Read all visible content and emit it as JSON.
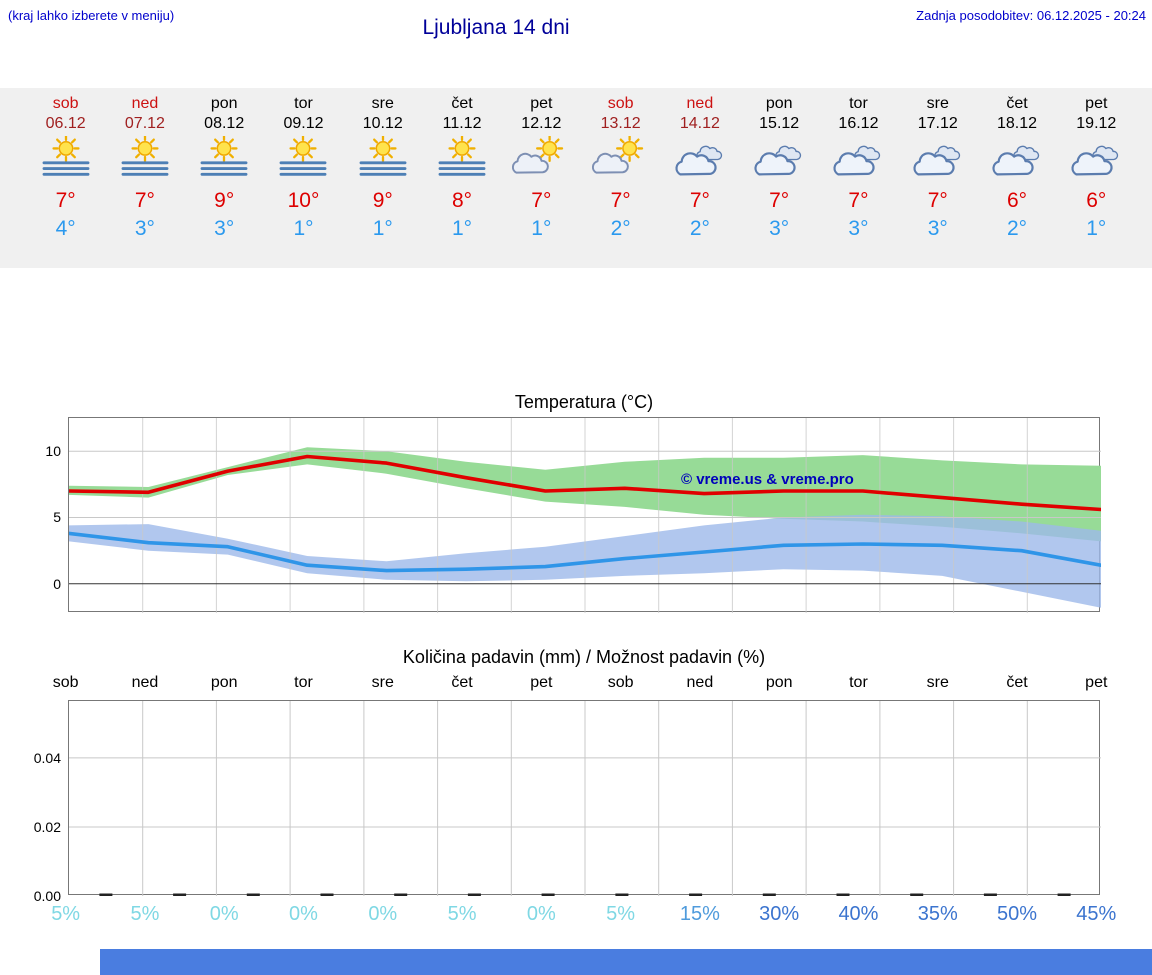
{
  "header": {
    "hint": "(kraj lahko izberete v meniju)",
    "title": "Ljubljana 14 dni",
    "last_update": "Zadnja posodobitev: 06.12.2025 - 20:24"
  },
  "colors": {
    "accent_blue": "#0000cc",
    "title_navy": "#000099",
    "weekend_red": "#cc1111",
    "weekend_date_red": "#a02020",
    "high_red": "#dd0000",
    "low_blue": "#2b99ee",
    "strip_bg": "#f0f0f0",
    "footer_bar": "#4a7de0"
  },
  "forecast": {
    "days": [
      {
        "day": "sob",
        "date": "06.12",
        "weekend": true,
        "icon": "sun-fog",
        "high": "7°",
        "low": "4°"
      },
      {
        "day": "ned",
        "date": "07.12",
        "weekend": true,
        "icon": "sun-fog",
        "high": "7°",
        "low": "3°"
      },
      {
        "day": "pon",
        "date": "08.12",
        "weekend": false,
        "icon": "sun-fog",
        "high": "9°",
        "low": "3°"
      },
      {
        "day": "tor",
        "date": "09.12",
        "weekend": false,
        "icon": "sun-fog",
        "high": "10°",
        "low": "1°"
      },
      {
        "day": "sre",
        "date": "10.12",
        "weekend": false,
        "icon": "sun-fog",
        "high": "9°",
        "low": "1°"
      },
      {
        "day": "čet",
        "date": "11.12",
        "weekend": false,
        "icon": "sun-fog",
        "high": "8°",
        "low": "1°"
      },
      {
        "day": "pet",
        "date": "12.12",
        "weekend": false,
        "icon": "sun-cloud",
        "high": "7°",
        "low": "1°"
      },
      {
        "day": "sob",
        "date": "13.12",
        "weekend": true,
        "icon": "sun-cloud",
        "high": "7°",
        "low": "2°"
      },
      {
        "day": "ned",
        "date": "14.12",
        "weekend": true,
        "icon": "clouds",
        "high": "7°",
        "low": "2°"
      },
      {
        "day": "pon",
        "date": "15.12",
        "weekend": false,
        "icon": "clouds",
        "high": "7°",
        "low": "3°"
      },
      {
        "day": "tor",
        "date": "16.12",
        "weekend": false,
        "icon": "clouds",
        "high": "7°",
        "low": "3°"
      },
      {
        "day": "sre",
        "date": "17.12",
        "weekend": false,
        "icon": "clouds",
        "high": "7°",
        "low": "3°"
      },
      {
        "day": "čet",
        "date": "18.12",
        "weekend": false,
        "icon": "clouds",
        "high": "6°",
        "low": "2°"
      },
      {
        "day": "pet",
        "date": "19.12",
        "weekend": false,
        "icon": "clouds",
        "high": "6°",
        "low": "1°"
      }
    ]
  },
  "chart_data": [
    {
      "type": "line",
      "title": "Temperatura (°C)",
      "categories": [
        "sob",
        "ned",
        "pon",
        "tor",
        "sre",
        "čet",
        "pet",
        "sob",
        "ned",
        "pon",
        "tor",
        "sre",
        "čet",
        "pet"
      ],
      "ylim": [
        -2.2,
        12.5
      ],
      "yticks": [
        {
          "v": 0,
          "label": "0"
        },
        {
          "v": 5,
          "label": "5"
        },
        {
          "v": 10,
          "label": "10"
        }
      ],
      "grid": true,
      "legend": "none",
      "annotation": {
        "text": "© vreme.us & vreme.pro",
        "color": "#0000bb"
      },
      "series": [
        {
          "name": "max-temp",
          "color": "#e00000",
          "values": [
            7.0,
            6.9,
            8.5,
            9.6,
            9.1,
            8.0,
            7.0,
            7.2,
            6.8,
            7.0,
            7.0,
            6.5,
            6.0,
            5.6
          ],
          "band": {
            "color": "#97db97",
            "opacity": 1,
            "high": [
              7.4,
              7.3,
              8.8,
              10.3,
              10.0,
              9.2,
              8.6,
              9.2,
              9.5,
              9.5,
              9.7,
              9.3,
              9.0,
              8.9
            ],
            "low": [
              6.7,
              6.5,
              8.2,
              9.0,
              8.3,
              7.2,
              6.2,
              5.8,
              5.2,
              4.9,
              4.7,
              4.3,
              3.8,
              3.2
            ]
          }
        },
        {
          "name": "min-temp",
          "color": "#2f95e8",
          "values": [
            3.8,
            3.1,
            2.8,
            1.4,
            1.0,
            1.1,
            1.3,
            1.9,
            2.4,
            2.9,
            3.0,
            2.9,
            2.5,
            1.4
          ],
          "band": {
            "color": "#9db9ea",
            "opacity": 0.8,
            "high": [
              4.4,
              4.5,
              3.4,
              2.1,
              1.7,
              2.3,
              2.8,
              3.6,
              4.4,
              5.0,
              5.2,
              5.1,
              4.7,
              4.0
            ],
            "low": [
              3.2,
              2.5,
              2.2,
              0.8,
              0.3,
              0.2,
              0.3,
              0.6,
              0.8,
              1.1,
              1.0,
              0.6,
              -0.6,
              -1.8
            ]
          }
        }
      ]
    },
    {
      "type": "bar",
      "title": "Količina padavin (mm) / Možnost padavin (%)",
      "categories": [
        "sob",
        "ned",
        "pon",
        "tor",
        "sre",
        "čet",
        "pet",
        "sob",
        "ned",
        "pon",
        "tor",
        "sre",
        "čet",
        "pet"
      ],
      "values": [
        0,
        0,
        0,
        0,
        0,
        0,
        0,
        0,
        0,
        0,
        0,
        0,
        0,
        0
      ],
      "bar_color": "#222222",
      "ylim": [
        0,
        0.0565
      ],
      "yticks": [
        {
          "v": 0,
          "label": "0.00"
        },
        {
          "v": 0.02,
          "label": "0.02"
        },
        {
          "v": 0.04,
          "label": "0.04"
        }
      ],
      "probabilities": [
        {
          "label": "5%",
          "color": "#7fd8e4"
        },
        {
          "label": "5%",
          "color": "#7fd8e4"
        },
        {
          "label": "0%",
          "color": "#7fd8e4"
        },
        {
          "label": "0%",
          "color": "#7fd8e4"
        },
        {
          "label": "0%",
          "color": "#7fd8e4"
        },
        {
          "label": "5%",
          "color": "#7fd8e4"
        },
        {
          "label": "0%",
          "color": "#7fd8e4"
        },
        {
          "label": "5%",
          "color": "#7fd8e4"
        },
        {
          "label": "15%",
          "color": "#4f9bdc"
        },
        {
          "label": "30%",
          "color": "#3b74cf"
        },
        {
          "label": "40%",
          "color": "#3b74cf"
        },
        {
          "label": "35%",
          "color": "#3b74cf"
        },
        {
          "label": "50%",
          "color": "#3b74cf"
        },
        {
          "label": "45%",
          "color": "#3b74cf"
        }
      ]
    }
  ]
}
